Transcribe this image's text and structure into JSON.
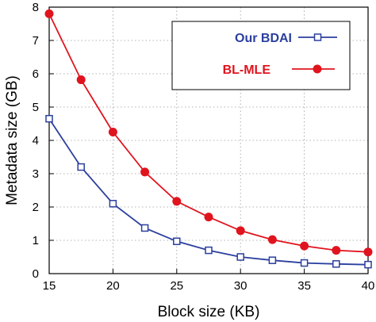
{
  "chart_data": {
    "type": "line",
    "title": "",
    "xlabel": "Block size (KB)",
    "ylabel": "Metadata size (GB)",
    "xlim": [
      15,
      40
    ],
    "ylim": [
      0,
      8
    ],
    "xticks": [
      "15",
      "20",
      "25",
      "30",
      "35",
      "40"
    ],
    "yticks": [
      "0",
      "1",
      "2",
      "3",
      "4",
      "5",
      "6",
      "7",
      "8"
    ],
    "grid": "dotted horizontal and vertical",
    "legend_position": "top-right",
    "x": [
      15,
      17.5,
      20,
      22.5,
      25,
      27.5,
      30,
      32.5,
      35,
      37.5,
      40
    ],
    "series": [
      {
        "name": "Our BDAI",
        "color": "#2b3f9e",
        "marker": "open-square",
        "values": [
          4.65,
          3.2,
          2.1,
          1.37,
          0.97,
          0.7,
          0.5,
          0.4,
          0.32,
          0.29,
          0.27
        ]
      },
      {
        "name": "BL-MLE",
        "color": "#e0141e",
        "marker": "filled-circle",
        "values": [
          7.8,
          5.82,
          4.25,
          3.05,
          2.17,
          1.7,
          1.29,
          1.02,
          0.83,
          0.7,
          0.65
        ]
      }
    ]
  }
}
